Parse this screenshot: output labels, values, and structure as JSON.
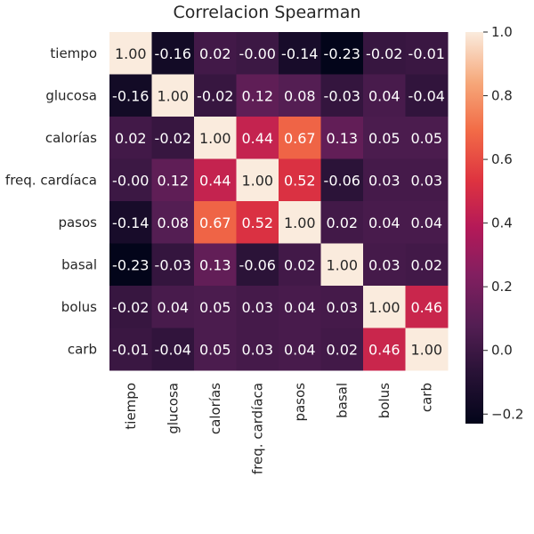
{
  "chart_data": {
    "type": "heatmap",
    "title": "Correlacion Spearman",
    "rows": [
      "tiempo",
      "glucosa",
      "calorías",
      "freq. cardíaca",
      "pasos",
      "basal",
      "bolus",
      "carb"
    ],
    "columns": [
      "tiempo",
      "glucosa",
      "calorías",
      "freq. cardíaca",
      "pasos",
      "basal",
      "bolus",
      "carb"
    ],
    "values": [
      [
        1.0,
        -0.16,
        0.02,
        -0.0,
        -0.14,
        -0.23,
        -0.02,
        -0.01
      ],
      [
        -0.16,
        1.0,
        -0.02,
        0.12,
        0.08,
        -0.03,
        0.04,
        -0.04
      ],
      [
        0.02,
        -0.02,
        1.0,
        0.44,
        0.67,
        0.13,
        0.05,
        0.05
      ],
      [
        -0.0,
        0.12,
        0.44,
        1.0,
        0.52,
        -0.06,
        0.03,
        0.03
      ],
      [
        -0.14,
        0.08,
        0.67,
        0.52,
        1.0,
        0.02,
        0.04,
        0.04
      ],
      [
        -0.23,
        -0.03,
        0.13,
        -0.06,
        0.02,
        1.0,
        0.03,
        0.02
      ],
      [
        -0.02,
        0.04,
        0.05,
        0.03,
        0.04,
        0.03,
        1.0,
        0.46
      ],
      [
        -0.01,
        -0.04,
        0.05,
        0.03,
        0.04,
        0.02,
        0.46,
        1.0
      ]
    ],
    "value_labels": [
      [
        "1.00",
        "-0.16",
        "0.02",
        "-0.00",
        "-0.14",
        "-0.23",
        "-0.02",
        "-0.01"
      ],
      [
        "-0.16",
        "1.00",
        "-0.02",
        "0.12",
        "0.08",
        "-0.03",
        "0.04",
        "-0.04"
      ],
      [
        "0.02",
        "-0.02",
        "1.00",
        "0.44",
        "0.67",
        "0.13",
        "0.05",
        "0.05"
      ],
      [
        "-0.00",
        "0.12",
        "0.44",
        "1.00",
        "0.52",
        "-0.06",
        "0.03",
        "0.03"
      ],
      [
        "-0.14",
        "0.08",
        "0.67",
        "0.52",
        "1.00",
        "0.02",
        "0.04",
        "0.04"
      ],
      [
        "-0.23",
        "-0.03",
        "0.13",
        "-0.06",
        "0.02",
        "1.00",
        "0.03",
        "0.02"
      ],
      [
        "-0.02",
        "0.04",
        "0.05",
        "0.03",
        "0.04",
        "0.03",
        "1.00",
        "0.46"
      ],
      [
        "-0.01",
        "-0.04",
        "0.05",
        "0.03",
        "0.04",
        "0.02",
        "0.46",
        "1.00"
      ]
    ],
    "colorbar": {
      "min": -0.23,
      "max": 1.0,
      "ticks": [
        -0.2,
        0.0,
        0.2,
        0.4,
        0.6,
        0.8,
        1.0
      ],
      "tick_labels": [
        "−0.2",
        "0.0",
        "0.2",
        "0.4",
        "0.6",
        "0.8",
        "1.0"
      ],
      "colormap": "rocket"
    }
  }
}
